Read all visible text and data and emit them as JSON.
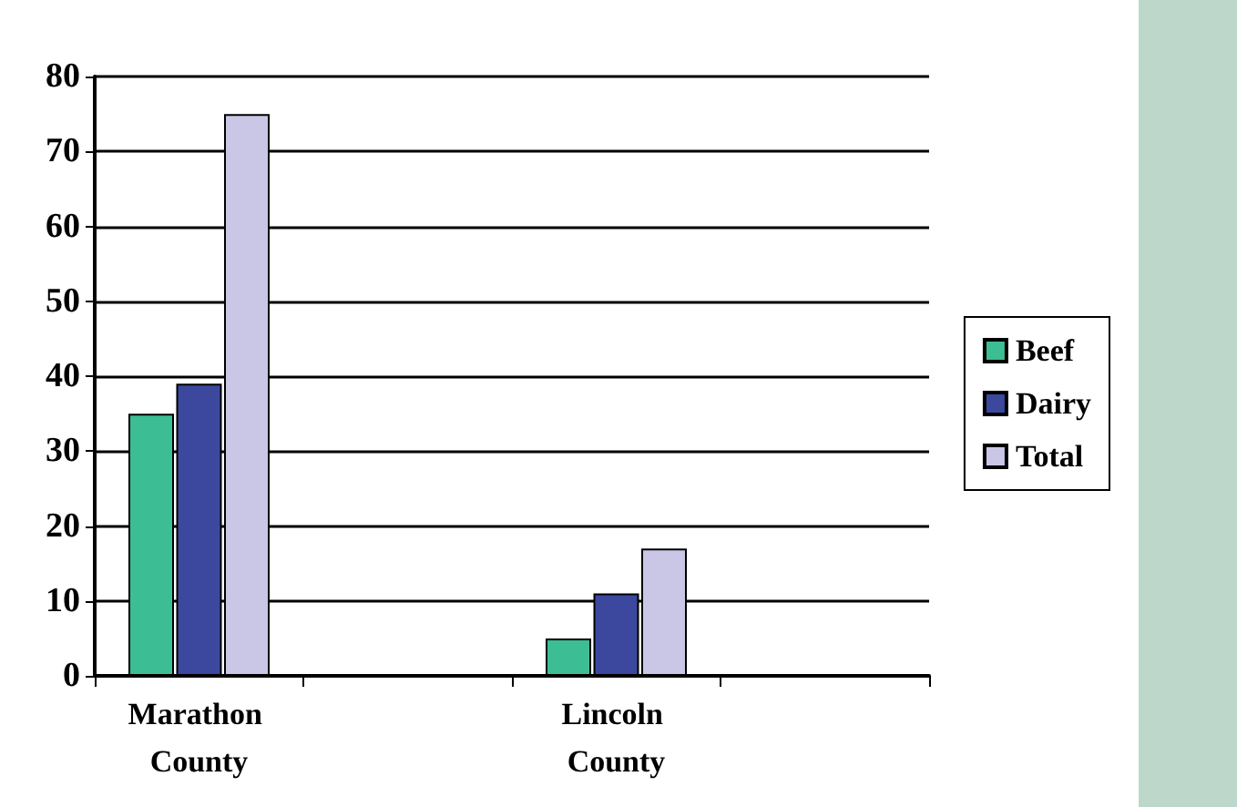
{
  "chart_data": {
    "type": "bar",
    "categories": [
      "Marathon County",
      null,
      "Lincoln County",
      null
    ],
    "series": [
      {
        "name": "Beef",
        "color": "#3dbd94",
        "values": [
          35,
          null,
          5,
          null
        ]
      },
      {
        "name": "Dairy",
        "color": "#3c489e",
        "values": [
          39,
          null,
          11,
          null
        ]
      },
      {
        "name": "Total",
        "color": "#c9c6e6",
        "values": [
          75,
          null,
          17,
          null
        ]
      }
    ],
    "ylim": [
      0,
      80
    ],
    "yticks": [
      0,
      10,
      20,
      30,
      40,
      50,
      60,
      70,
      80
    ],
    "grid": "y",
    "legend": "right"
  }
}
